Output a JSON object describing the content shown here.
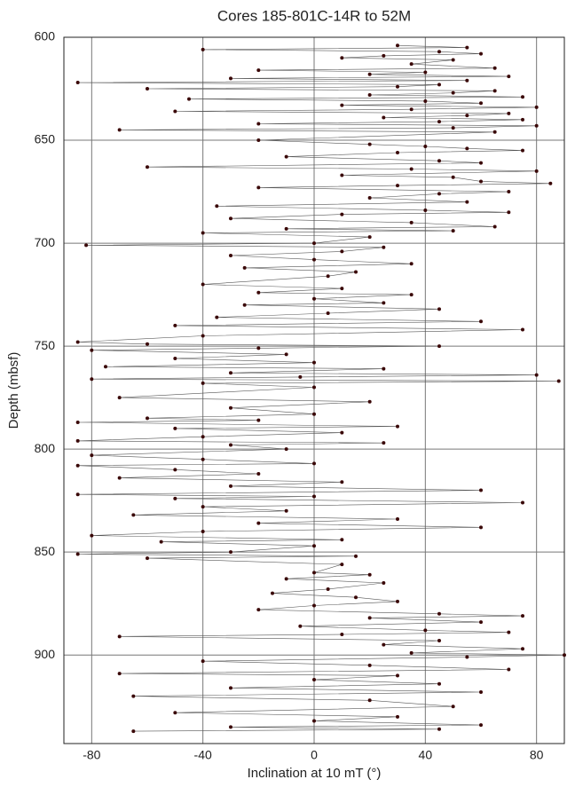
{
  "chart_data": {
    "type": "scatter",
    "title": "Cores 185-801C-14R to 52M",
    "x_label": "Inclination at 10 mT (°)",
    "y_label": "Depth (mbsf)",
    "color": "#3a0808",
    "line_color": "#555555",
    "connected": true,
    "y_inverted": true,
    "grid": true,
    "xlim": [
      -90,
      90
    ],
    "xticks": [
      -80,
      -40,
      0,
      40,
      80
    ],
    "ylim": [
      600,
      943
    ],
    "yticks": [
      600,
      650,
      700,
      750,
      800,
      850,
      900
    ],
    "x": [
      30,
      55,
      -40,
      45,
      60,
      25,
      10,
      50,
      35,
      65,
      -20,
      40,
      20,
      70,
      -30,
      55,
      -85,
      45,
      30,
      -60,
      65,
      50,
      20,
      75,
      -45,
      40,
      60,
      10,
      80,
      35,
      -50,
      70,
      55,
      25,
      75,
      45,
      -20,
      80,
      50,
      -70,
      65,
      -20,
      20,
      40,
      55,
      75,
      30,
      -10,
      45,
      60,
      -60,
      35,
      80,
      10,
      50,
      60,
      85,
      30,
      -20,
      70,
      45,
      20,
      55,
      -35,
      40,
      70,
      10,
      -30,
      35,
      65,
      -10,
      50,
      -40,
      20,
      0,
      -82,
      25,
      10,
      -30,
      0,
      35,
      -25,
      15,
      5,
      -40,
      10,
      -20,
      35,
      0,
      25,
      -25,
      45,
      5,
      -35,
      60,
      -50,
      75,
      -40,
      -85,
      -60,
      45,
      -20,
      -80,
      -10,
      -50,
      0,
      -75,
      25,
      -30,
      80,
      -5,
      -80,
      88,
      -40,
      0,
      -70,
      20,
      -30,
      0,
      -60,
      -20,
      -85,
      30,
      -50,
      10,
      -40,
      -85,
      25,
      -30,
      -10,
      -80,
      -40,
      0,
      -85,
      -50,
      -20,
      -70,
      10,
      -30,
      60,
      -85,
      0,
      -50,
      75,
      -40,
      -10,
      -65,
      30,
      -20,
      60,
      -40,
      -80,
      10,
      -55,
      0,
      -30,
      -85,
      15,
      -60,
      10,
      0,
      20,
      -10,
      25,
      5,
      -15,
      15,
      30,
      0,
      -20,
      45,
      75,
      20,
      60,
      -5,
      40,
      70,
      10,
      -70,
      45,
      25,
      75,
      35,
      90,
      55,
      -40,
      20,
      70,
      -70,
      30,
      0,
      45,
      -30,
      60,
      -65,
      20,
      50,
      -50,
      30,
      0,
      60,
      -30,
      45,
      -65
    ],
    "values": [
      604,
      605,
      606,
      607,
      608,
      609,
      610,
      611,
      613,
      615,
      616,
      617,
      618,
      619,
      620,
      621,
      622,
      623,
      624,
      625,
      626,
      627,
      628,
      629,
      630,
      631,
      632,
      633,
      634,
      635,
      636,
      637,
      638,
      639,
      640,
      641,
      642,
      643,
      644,
      645,
      646,
      650,
      652,
      653,
      654,
      655,
      656,
      658,
      660,
      661,
      663,
      664,
      665,
      667,
      668,
      670,
      671,
      672,
      673,
      675,
      676,
      678,
      680,
      682,
      684,
      685,
      686,
      688,
      690,
      692,
      693,
      694,
      695,
      697,
      700,
      701,
      702,
      704,
      706,
      708,
      710,
      712,
      714,
      716,
      720,
      722,
      724,
      725,
      727,
      729,
      730,
      732,
      734,
      736,
      738,
      740,
      742,
      745,
      748,
      749,
      750,
      751,
      752,
      754,
      756,
      758,
      760,
      761,
      763,
      764,
      765,
      766,
      767,
      768,
      770,
      775,
      777,
      780,
      783,
      785,
      786,
      787,
      789,
      790,
      792,
      794,
      796,
      797,
      798,
      800,
      803,
      805,
      807,
      808,
      810,
      812,
      814,
      816,
      818,
      820,
      822,
      823,
      824,
      826,
      828,
      830,
      832,
      834,
      836,
      838,
      840,
      842,
      844,
      845,
      847,
      850,
      851,
      852,
      853,
      856,
      860,
      861,
      863,
      865,
      868,
      870,
      872,
      874,
      876,
      878,
      880,
      881,
      882,
      884,
      886,
      888,
      889,
      890,
      891,
      893,
      895,
      897,
      899,
      900,
      901,
      903,
      905,
      907,
      909,
      910,
      912,
      914,
      916,
      918,
      920,
      922,
      925,
      928,
      930,
      932,
      934,
      935,
      936,
      937
    ]
  }
}
